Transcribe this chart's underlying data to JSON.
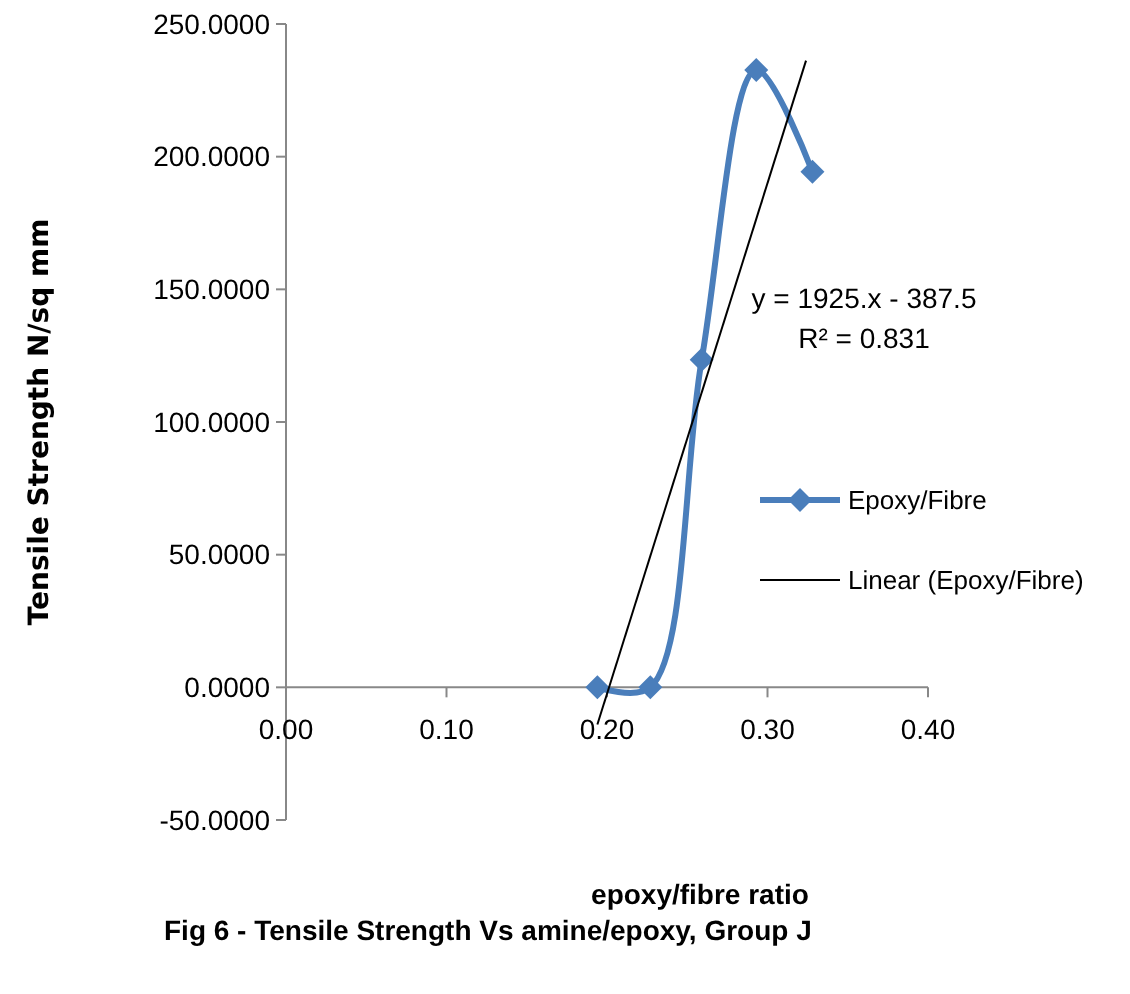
{
  "chart_data": {
    "type": "line",
    "title": "Fig 6 - Tensile Strength Vs amine/epoxy, Group J",
    "xlabel": "epoxy/fibre ratio",
    "ylabel": "Tensile Strength N/sq mm",
    "xlim": [
      0,
      0.4
    ],
    "xticks": [
      {
        "value": 0,
        "label": "0.00"
      },
      {
        "value": 0.1,
        "label": "0.10"
      },
      {
        "value": 0.2,
        "label": "0.20"
      },
      {
        "value": 0.3,
        "label": "0.30"
      },
      {
        "value": 0.4,
        "label": "0.40"
      }
    ],
    "ylim": [
      -50,
      250
    ],
    "yticks": [
      {
        "value": -50,
        "label": "-50.0000"
      },
      {
        "value": 0,
        "label": "0.0000"
      },
      {
        "value": 50,
        "label": "50.0000"
      },
      {
        "value": 100,
        "label": "100.0000"
      },
      {
        "value": 150,
        "label": "150.0000"
      },
      {
        "value": 200,
        "label": "200.0000"
      },
      {
        "value": 250,
        "label": "250.0000"
      }
    ],
    "legend": "right",
    "annotations": [
      "y = 1925.x - 387.5",
      "R² = 0.831"
    ],
    "series": [
      {
        "name": "Epoxy/Fibre",
        "color": "#4a7ebb",
        "x": [
          0.194,
          0.227,
          0.259,
          0.293,
          0.328
        ],
        "values": [
          0,
          0,
          123.5,
          232.7,
          194.3
        ],
        "marker": "diamond",
        "line_style": "solid"
      },
      {
        "name": "Linear (Epoxy/Fibre)",
        "color": "#000000",
        "type": "line",
        "x": [
          0.194,
          0.324
        ],
        "values": [
          -14,
          236.2
        ],
        "marker": "none",
        "line_style": "solid"
      }
    ]
  }
}
